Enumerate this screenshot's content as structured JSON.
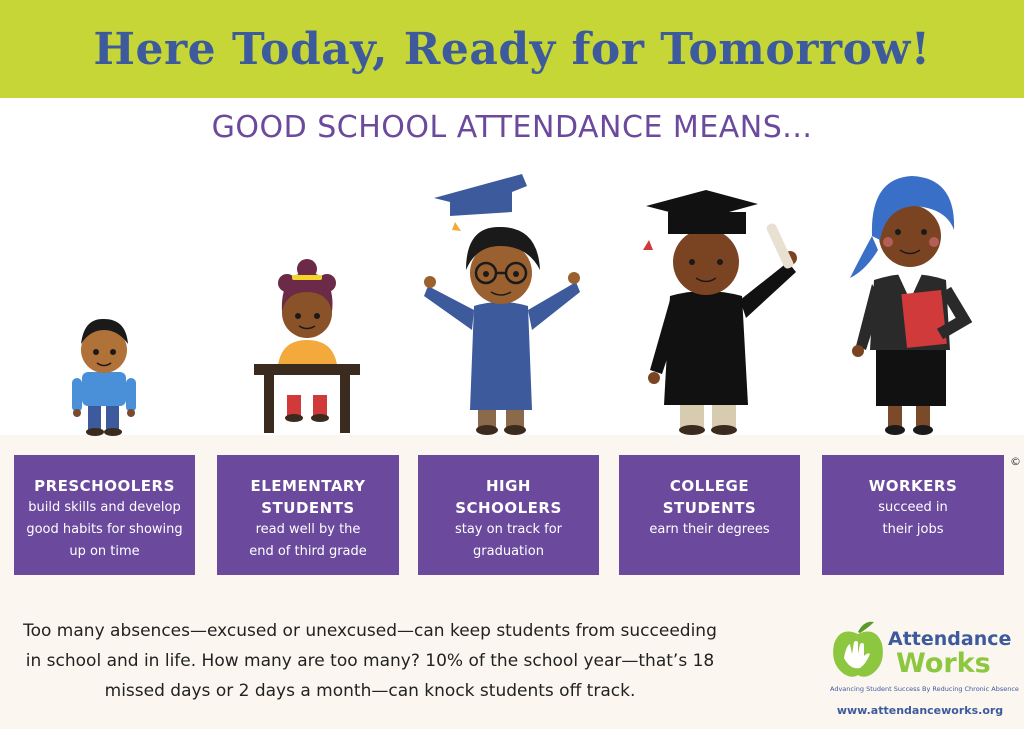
{
  "banner": {
    "title": "Here Today, Ready for Tomorrow!"
  },
  "subtitle": "GOOD SCHOOL ATTENDANCE MEANS...",
  "cards": [
    {
      "title_lines": [
        "PRESCHOOLERS"
      ],
      "desc_lines": [
        "build skills and develop",
        "good habits for showing",
        "up on time"
      ]
    },
    {
      "title_lines": [
        "ELEMENTARY",
        "STUDENTS"
      ],
      "desc_lines": [
        "read well by the",
        "end of third grade"
      ]
    },
    {
      "title_lines": [
        "HIGH",
        "SCHOOLERS"
      ],
      "desc_lines": [
        "stay on track for",
        "graduation"
      ]
    },
    {
      "title_lines": [
        "COLLEGE",
        "STUDENTS"
      ],
      "desc_lines": [
        "earn their degrees"
      ]
    },
    {
      "title_lines": [
        "WORKERS"
      ],
      "desc_lines": [
        "succeed in",
        "their jobs"
      ]
    }
  ],
  "copyright": "©",
  "note_lines": [
    "Too many absences—excused or unexcused—can keep students from succeeding",
    "in school and in life. How many are too many? 10% of the school year—that’s 18",
    "missed days or 2 days a month—can knock students off track."
  ],
  "logo": {
    "word1": "Attendance",
    "word2": "Works",
    "tagline": "Advancing Student Success By Reducing Chronic Absence",
    "url": "www.attendanceworks.org"
  },
  "colors": {
    "banner_bg": "#c5d636",
    "banner_text": "#3d5a9c",
    "accent_purple": "#6b4a9e",
    "logo_green": "#8dc63f"
  }
}
